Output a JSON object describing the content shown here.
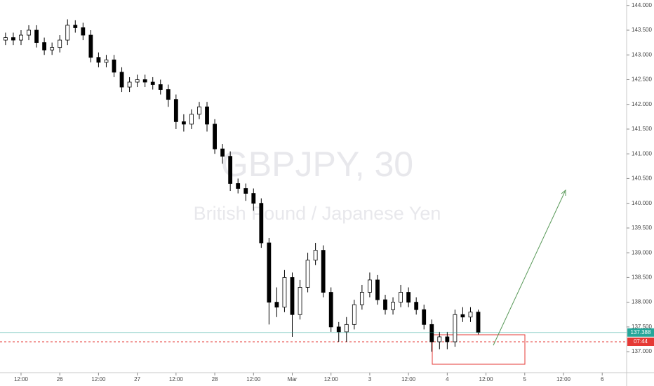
{
  "chart_data": {
    "type": "candlestick",
    "title": "GBPJPY, 30",
    "subtitle": "British Pound / Japanese Yen",
    "x": [
      -0.4,
      -0.2,
      0,
      0.2,
      0.4,
      0.6,
      0.8,
      1.0,
      1.2,
      1.4,
      1.6,
      1.8,
      2.0,
      2.2,
      2.4,
      2.6,
      2.8,
      3.0,
      3.2,
      3.4,
      3.6,
      3.8,
      4.0,
      4.2,
      4.4,
      4.6,
      4.8,
      5.0,
      5.2,
      5.4,
      5.6,
      5.8,
      6.0,
      6.2,
      6.4,
      6.6,
      6.8,
      7.0,
      7.2,
      7.4,
      7.6,
      7.8,
      8.0,
      8.2,
      8.4,
      8.6,
      8.8,
      9.0,
      9.2,
      9.4,
      9.6,
      9.8,
      10.0,
      10.2,
      10.4,
      10.6,
      10.8,
      11.0,
      11.2,
      11.4,
      11.6,
      11.8
    ],
    "open": [
      143.3,
      143.35,
      143.3,
      143.4,
      143.5,
      143.25,
      143.1,
      143.15,
      143.3,
      143.6,
      143.55,
      143.4,
      142.95,
      142.85,
      142.9,
      142.65,
      142.35,
      142.45,
      142.5,
      142.45,
      142.4,
      142.3,
      142.1,
      141.65,
      141.6,
      141.8,
      141.95,
      141.6,
      141.1,
      140.95,
      140.4,
      140.3,
      140.2,
      140.0,
      139.2,
      138.0,
      137.9,
      138.5,
      137.75,
      138.3,
      138.85,
      139.05,
      138.2,
      137.5,
      137.4,
      137.55,
      137.95,
      138.2,
      138.45,
      138.05,
      137.85,
      138.0,
      138.2,
      138.0,
      137.85,
      137.55,
      137.2,
      137.3,
      137.2,
      137.75,
      137.7,
      137.8
    ],
    "high": [
      143.45,
      143.45,
      143.5,
      143.6,
      143.6,
      143.35,
      143.25,
      143.4,
      143.72,
      143.7,
      143.65,
      143.5,
      143.05,
      143.0,
      143.0,
      142.75,
      142.55,
      142.6,
      142.6,
      142.55,
      142.5,
      142.4,
      142.2,
      141.8,
      141.9,
      142.05,
      142.05,
      141.7,
      141.2,
      141.05,
      140.5,
      140.4,
      140.3,
      140.1,
      139.3,
      138.3,
      138.65,
      138.6,
      138.45,
      139.0,
      139.2,
      139.15,
      138.3,
      137.6,
      137.7,
      138.05,
      138.35,
      138.6,
      138.55,
      138.15,
      138.1,
      138.35,
      138.3,
      138.1,
      137.95,
      137.65,
      137.4,
      137.4,
      137.85,
      137.9,
      137.9,
      137.85
    ],
    "low": [
      143.2,
      143.2,
      143.2,
      143.3,
      143.15,
      143.0,
      143.0,
      143.05,
      143.2,
      143.45,
      143.3,
      142.85,
      142.75,
      142.75,
      142.55,
      142.25,
      142.25,
      142.35,
      142.35,
      142.3,
      142.2,
      141.95,
      141.5,
      141.45,
      141.5,
      141.7,
      141.45,
      141.0,
      140.8,
      140.25,
      140.2,
      140.05,
      139.85,
      139.1,
      137.55,
      137.7,
      137.8,
      137.3,
      137.65,
      138.2,
      138.75,
      138.1,
      137.4,
      137.2,
      137.2,
      137.45,
      137.85,
      138.1,
      137.95,
      137.75,
      137.75,
      137.9,
      137.9,
      137.75,
      137.45,
      137.0,
      137.05,
      137.05,
      137.1,
      137.6,
      137.6,
      137.35
    ],
    "close": [
      143.35,
      143.3,
      143.4,
      143.5,
      143.25,
      143.1,
      143.15,
      143.3,
      143.6,
      143.55,
      143.4,
      142.95,
      142.85,
      142.9,
      142.65,
      142.35,
      142.45,
      142.5,
      142.45,
      142.4,
      142.3,
      142.1,
      141.65,
      141.6,
      141.8,
      141.95,
      141.6,
      141.1,
      140.95,
      140.4,
      140.3,
      140.2,
      140.0,
      139.2,
      138.0,
      137.9,
      138.5,
      137.75,
      138.3,
      138.85,
      139.05,
      138.2,
      137.5,
      137.4,
      137.55,
      137.95,
      138.2,
      138.45,
      138.05,
      137.85,
      138.0,
      138.2,
      138.0,
      137.85,
      137.55,
      137.2,
      137.3,
      137.2,
      137.75,
      137.7,
      137.8,
      137.39
    ],
    "xlim": [
      -0.543,
      15.63
    ],
    "ylim": [
      136.59,
      144.11
    ],
    "xticks": [
      {
        "value": 0,
        "label": "12:00"
      },
      {
        "value": 1,
        "label": "26"
      },
      {
        "value": 2,
        "label": "12:00"
      },
      {
        "value": 3,
        "label": "27"
      },
      {
        "value": 4,
        "label": "12:00"
      },
      {
        "value": 5,
        "label": "28"
      },
      {
        "value": 6,
        "label": "12:00"
      },
      {
        "value": 7,
        "label": "Mar"
      },
      {
        "value": 8,
        "label": "12:00"
      },
      {
        "value": 9,
        "label": "3"
      },
      {
        "value": 10,
        "label": "12:00"
      },
      {
        "value": 11,
        "label": "4"
      },
      {
        "value": 12,
        "label": "12:00"
      },
      {
        "value": 13,
        "label": "5"
      },
      {
        "value": 14,
        "label": "12:00"
      },
      {
        "value": 15,
        "label": "6"
      }
    ],
    "yticks": [
      {
        "value": 137,
        "label": "137.000"
      },
      {
        "value": 137.5,
        "label": "137.500"
      },
      {
        "value": 138,
        "label": "138.000"
      },
      {
        "value": 138.5,
        "label": "138.500"
      },
      {
        "value": 139,
        "label": "139.000"
      },
      {
        "value": 139.5,
        "label": "139.500"
      },
      {
        "value": 140,
        "label": "140.000"
      },
      {
        "value": 140.5,
        "label": "140.500"
      },
      {
        "value": 141,
        "label": "141.000"
      },
      {
        "value": 141.5,
        "label": "141.500"
      },
      {
        "value": 142,
        "label": "142.000"
      },
      {
        "value": 142.5,
        "label": "142.500"
      },
      {
        "value": 143,
        "label": "143.000"
      },
      {
        "value": 143.5,
        "label": "143.500"
      },
      {
        "value": 144,
        "label": "144.000"
      }
    ],
    "last_price": 137.388,
    "countdown": "07:44",
    "up_color": "#ffffff",
    "down_color": "#000000",
    "wick_color": "#000000",
    "last_price_color": "#26a69a"
  }
}
